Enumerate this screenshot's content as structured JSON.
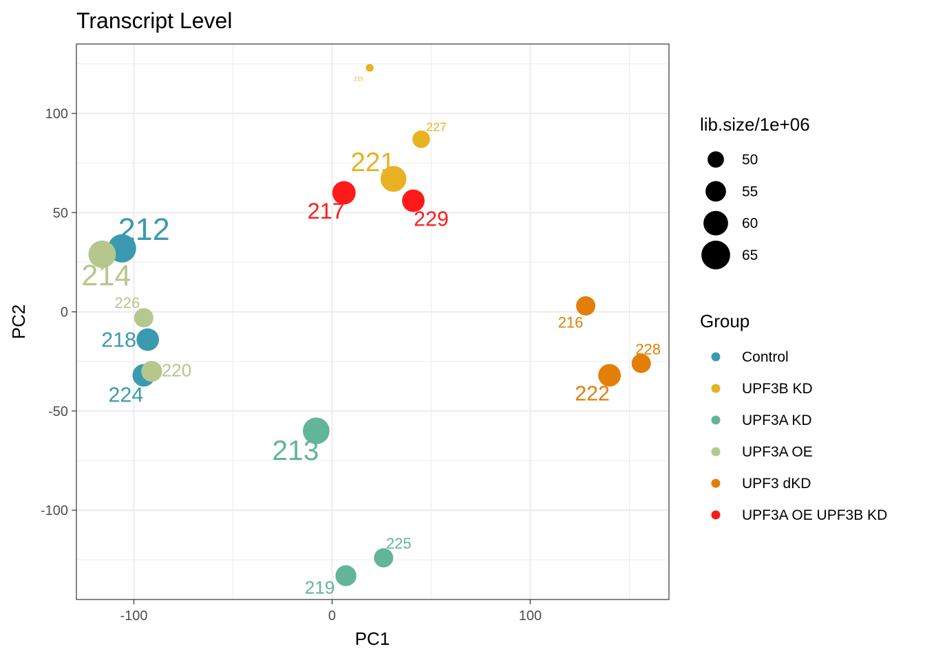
{
  "chart_data": {
    "type": "scatter",
    "title": "Transcript Level",
    "xlabel": "PC1",
    "ylabel": "PC2",
    "xlim": [
      -129,
      170
    ],
    "ylim": [
      -145,
      135
    ],
    "xticks": [
      -100,
      0,
      100
    ],
    "yticks": [
      -100,
      -50,
      0,
      50,
      100
    ],
    "grid": true,
    "groups": [
      {
        "name": "Control",
        "color": "#3a9ab2"
      },
      {
        "name": "UPF3B KD",
        "color": "#e8b222"
      },
      {
        "name": "UPF3A KD",
        "color": "#62b598"
      },
      {
        "name": "UPF3A OE",
        "color": "#b5c78c"
      },
      {
        "name": "UPF3 dKD",
        "color": "#e37f06"
      },
      {
        "name": "UPF3A OE UPF3B KD",
        "color": "#ff1a1a"
      }
    ],
    "size_legend": {
      "title": "lib.size/1e+06",
      "values": [
        50,
        55,
        60,
        65
      ]
    },
    "points": [
      {
        "label": "212",
        "group": "Control",
        "x": -106,
        "y": 32,
        "size": 66
      },
      {
        "label": "214",
        "group": "UPF3A OE",
        "x": -116,
        "y": 29,
        "size": 65
      },
      {
        "label": "226",
        "group": "UPF3A OE",
        "x": -95,
        "y": -3,
        "size": 55
      },
      {
        "label": "218",
        "group": "Control",
        "x": -93,
        "y": -14,
        "size": 59
      },
      {
        "label": "220",
        "group": "UPF3A OE",
        "x": -91,
        "y": -30,
        "size": 57
      },
      {
        "label": "224",
        "group": "Control",
        "x": -95,
        "y": -32,
        "size": 59
      },
      {
        "label": "213",
        "group": "UPF3A KD",
        "x": -8,
        "y": -60,
        "size": 64
      },
      {
        "label": "217",
        "group": "UPF3A OE UPF3B KD",
        "x": 6,
        "y": 60,
        "size": 60
      },
      {
        "label": "221",
        "group": "UPF3B KD",
        "x": 31,
        "y": 67,
        "size": 63
      },
      {
        "label": "229",
        "group": "UPF3A OE UPF3B KD",
        "x": 41,
        "y": 56,
        "size": 59
      },
      {
        "label": "227",
        "group": "UPF3B KD",
        "x": 45,
        "y": 87,
        "size": 53
      },
      {
        "label": "215",
        "group": "UPF3B KD",
        "x": 19,
        "y": 123,
        "size": 41
      },
      {
        "label": "225",
        "group": "UPF3A KD",
        "x": 26,
        "y": -124,
        "size": 55
      },
      {
        "label": "219",
        "group": "UPF3A KD",
        "x": 7,
        "y": -133,
        "size": 57
      },
      {
        "label": "216",
        "group": "UPF3 dKD",
        "x": 128,
        "y": 3,
        "size": 55
      },
      {
        "label": "222",
        "group": "UPF3 dKD",
        "x": 140,
        "y": -32,
        "size": 59
      },
      {
        "label": "228",
        "group": "UPF3 dKD",
        "x": 156,
        "y": -26,
        "size": 55
      }
    ]
  }
}
